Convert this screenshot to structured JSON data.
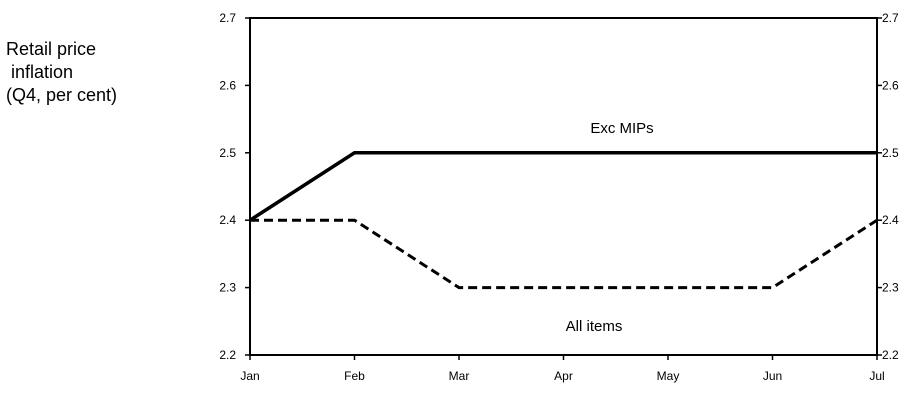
{
  "chart_data": {
    "type": "line",
    "title": "",
    "ylabel": "Retail price\n inflation\n(Q4, per cent)",
    "xlabel": "",
    "categories": [
      "Jan",
      "Feb",
      "Mar",
      "Apr",
      "May",
      "Jun",
      "Jul"
    ],
    "ylim": [
      2.2,
      2.7
    ],
    "yticks": [
      "2.2",
      "2.3",
      "2.4",
      "2.5",
      "2.6",
      "2.7"
    ],
    "right_axis": true,
    "grid": false,
    "legend": "none",
    "series": [
      {
        "name": "Exc MIPs",
        "values": [
          2.4,
          2.5,
          2.5,
          2.5,
          2.5,
          2.5,
          2.5
        ],
        "style": "solid",
        "color": "#000000"
      },
      {
        "name": "All items",
        "values": [
          2.4,
          2.4,
          2.3,
          2.3,
          2.3,
          2.3,
          2.4
        ],
        "style": "dashed",
        "color": "#000000"
      }
    ]
  }
}
